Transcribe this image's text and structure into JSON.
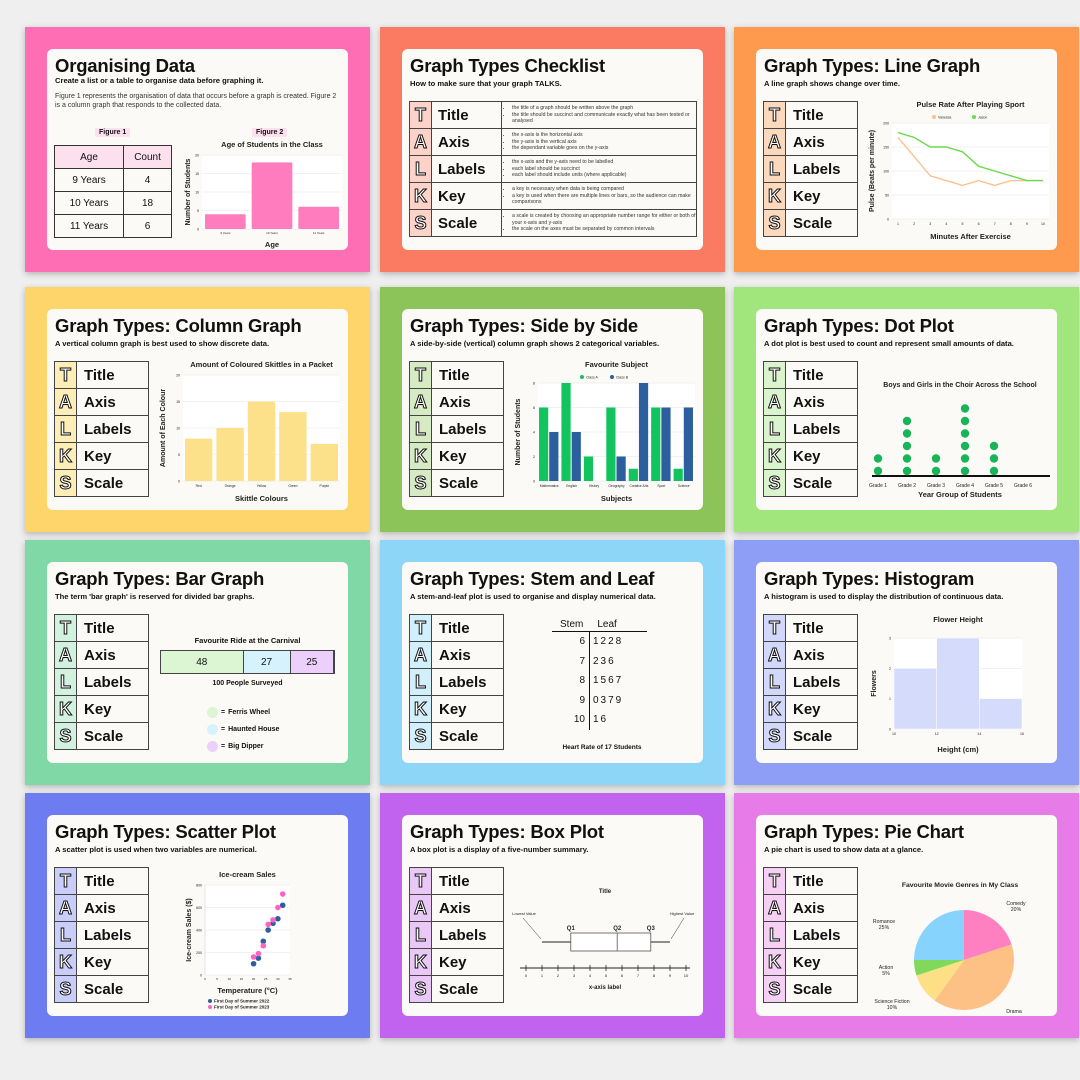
{
  "talks": [
    {
      "letter": "T",
      "word": "Title",
      "desc": [
        "the title of a graph should be written above the graph",
        "the title should be succinct and communicate exactly what has been tested or analysed"
      ]
    },
    {
      "letter": "A",
      "word": "Axis",
      "desc": [
        "the x-axis is the horizontal axis",
        "the y-axis is the vertical axis",
        "the dependant variable goes on the y-axis"
      ]
    },
    {
      "letter": "L",
      "word": "Labels",
      "desc": [
        "the x-axis and the y-axis need to be labelled",
        "each label should be succinct",
        "each label should include units (where applicable)"
      ]
    },
    {
      "letter": "K",
      "word": "Key",
      "desc": [
        "a key is necessary when data is being compared",
        "a key is used when there are multiple lines or bars, so the audience can make comparisons"
      ]
    },
    {
      "letter": "S",
      "word": "Scale",
      "desc": [
        "a scale is created by choosing an appropriate number range for either or both of your x-axis and y-axis",
        "the scale on the axes must be separated by common intervals"
      ]
    }
  ],
  "slides": [
    {
      "id": "organising-data",
      "title": "Organising Data",
      "subtitle": "Create a list or a table to organise data before graphing it.",
      "paragraph": "Figure 1 represents the organisation of data that occurs before a graph is created. Figure 2 is a column graph that responds to the collected data.",
      "figure1": "Figure 1",
      "figure2": "Figure 2",
      "table": {
        "headers": [
          "Age",
          "Count"
        ],
        "rows": [
          [
            "9 Years",
            "4"
          ],
          [
            "10 Years",
            "18"
          ],
          [
            "11 Years",
            "6"
          ]
        ]
      },
      "border": "#fd6eb4",
      "accent": "#fde0ee"
    },
    {
      "id": "checklist",
      "title": "Graph Types Checklist",
      "subtitle": "How to make sure that your graph TALKS.",
      "border": "#fb7b62",
      "accent": "#fcd2c9"
    },
    {
      "id": "line-graph",
      "title": "Graph Types: Line Graph",
      "subtitle": "A line graph shows change over time.",
      "border": "#fd9a4e",
      "accent": "#fcd8bc"
    },
    {
      "id": "column-graph",
      "title": "Graph Types: Column Graph",
      "subtitle": "A vertical column graph is best used to show discrete data.",
      "border": "#fdd56a",
      "accent": "#fdeeb7"
    },
    {
      "id": "side-by-side",
      "title": "Graph Types: Side by Side",
      "subtitle": "A side-by-side (vertical) column graph shows 2 categorical variables.",
      "border": "#8cc45a",
      "accent": "#d6ebc4"
    },
    {
      "id": "dot-plot",
      "title": "Graph Types: Dot Plot",
      "subtitle": "A dot plot is best used to count and represent small amounts of data.",
      "border": "#a0e67c",
      "accent": "#daf4cd"
    },
    {
      "id": "bar-graph",
      "title": "Graph Types: Bar Graph",
      "subtitle": "The term 'bar graph' is reserved for divided bar graphs.",
      "border": "#80d8a7",
      "accent": "#d3f1df"
    },
    {
      "id": "stem-leaf",
      "title": "Graph Types: Stem and Leaf",
      "subtitle": "A stem-and-leaf plot is used to organise and display numerical data.",
      "border": "#8ed6f7",
      "accent": "#d2effc"
    },
    {
      "id": "histogram",
      "title": "Graph Types: Histogram",
      "subtitle": "A histogram is used to display the distribution of continuous data.",
      "border": "#8e9df5",
      "accent": "#d2d8fb"
    },
    {
      "id": "scatter-plot",
      "title": "Graph Types: Scatter Plot",
      "subtitle": "A scatter plot is used when two variables are numerical.",
      "border": "#6d7cf0",
      "accent": "#c9cdfa"
    },
    {
      "id": "box-plot",
      "title": "Graph Types: Box Plot",
      "subtitle": "A box plot is a display of a five-number summary.",
      "border": "#c163ee",
      "accent": "#e9c8f8"
    },
    {
      "id": "pie-chart",
      "title": "Graph Types: Pie Chart",
      "subtitle": "A pie chart is used to show data at a glance.",
      "border": "#e77be8",
      "accent": "#f6cff5"
    }
  ],
  "chart_data": [
    {
      "slide": "organising-data",
      "type": "bar",
      "title": "Age of Students in the Class",
      "xlabel": "Age",
      "ylabel": "Number of Students",
      "categories": [
        "9 Years",
        "10 Years",
        "11 Years"
      ],
      "values": [
        4,
        18,
        6
      ],
      "ylim": [
        0,
        20
      ],
      "yticks": [
        0,
        5,
        10,
        15,
        20
      ],
      "color": "#ff7cbf",
      "grid": true
    },
    {
      "slide": "line-graph",
      "type": "line",
      "title": "Pulse Rate After Playing Sport",
      "xlabel": "Minutes After Exercise",
      "ylabel": "Pulse (Beats per minute)",
      "x": [
        1,
        2,
        3,
        4,
        5,
        6,
        7,
        8,
        9,
        10
      ],
      "ylim": [
        0,
        200
      ],
      "yticks": [
        0,
        50,
        100,
        150,
        200
      ],
      "legend": "top",
      "grid": true,
      "series": [
        {
          "name": "Vanessa",
          "color": "#fdc08e",
          "values": [
            170,
            130,
            90,
            80,
            70,
            80,
            70,
            80,
            80,
            80
          ]
        },
        {
          "name": "Jason",
          "color": "#6fd94f",
          "values": [
            180,
            170,
            150,
            150,
            140,
            110,
            100,
            90,
            80,
            80
          ]
        }
      ]
    },
    {
      "slide": "column-graph",
      "type": "bar",
      "title": "Amount of Coloured Skittles in a Packet",
      "xlabel": "Skittle Colours",
      "ylabel": "Amount of Each Colour",
      "categories": [
        "Red",
        "Orange",
        "Yellow",
        "Green",
        "Purple"
      ],
      "values": [
        8,
        10,
        15,
        13,
        7
      ],
      "ylim": [
        0,
        20
      ],
      "yticks": [
        0,
        5,
        10,
        15,
        20
      ],
      "color": "#fde08a",
      "grid": true
    },
    {
      "slide": "side-by-side",
      "type": "bar",
      "title": "Favourite Subject",
      "xlabel": "Subjects",
      "ylabel": "Number of Students",
      "categories": [
        "Mathematics",
        "English",
        "History",
        "Geography",
        "Creative Arts",
        "Sport",
        "Science"
      ],
      "ylim": [
        0,
        8
      ],
      "yticks": [
        0,
        2,
        4,
        6,
        8
      ],
      "legend": "top",
      "grid": true,
      "series": [
        {
          "name": "Class A",
          "color": "#12c45e",
          "values": [
            6,
            8,
            2,
            6,
            1,
            6,
            1
          ]
        },
        {
          "name": "Class B",
          "color": "#2b5f9e",
          "values": [
            4,
            4,
            0,
            2,
            8,
            6,
            6
          ]
        }
      ]
    },
    {
      "slide": "dot-plot",
      "type": "scatter",
      "title": "Boys and Girls in the Choir Across the School",
      "xlabel": "Year Group of Students",
      "categories": [
        "Grade 1",
        "Grade 2",
        "Grade 3",
        "Grade 4",
        "Grade 5",
        "Grade 6"
      ],
      "values": [
        2,
        5,
        2,
        6,
        3,
        0
      ],
      "color": "#19b458"
    },
    {
      "slide": "bar-graph",
      "type": "bar",
      "title": "Favourite Ride at the Carnival",
      "caption": "100 People Surveyed",
      "series": [
        {
          "name": "Ferris Wheel",
          "value": 48,
          "color": "#dcf5d2"
        },
        {
          "name": "Haunted House",
          "value": 27,
          "color": "#d5f2fd"
        },
        {
          "name": "Big Dipper",
          "value": 25,
          "color": "#ecd0fb"
        }
      ],
      "legend_prefix": "= "
    },
    {
      "slide": "stem-leaf",
      "type": "table",
      "caption": "Heart Rate of 17 Students",
      "headers": [
        "Stem",
        "Leaf"
      ],
      "rows": [
        [
          "6",
          "1228"
        ],
        [
          "7",
          "236"
        ],
        [
          "8",
          "1567"
        ],
        [
          "9",
          "0379"
        ],
        [
          "10",
          "16"
        ]
      ]
    },
    {
      "slide": "histogram",
      "type": "bar",
      "title": "Flower Height",
      "xlabel": "Height (cm)",
      "ylabel": "Flowers",
      "bins": [
        [
          10,
          12
        ],
        [
          12,
          14
        ],
        [
          14,
          16
        ]
      ],
      "values": [
        2,
        3,
        1
      ],
      "xticks": [
        10,
        12,
        14,
        16
      ],
      "ylim": [
        0,
        3
      ],
      "yticks": [
        0,
        1,
        2,
        3
      ],
      "color": "#d5dcfb",
      "grid": true
    },
    {
      "slide": "scatter-plot",
      "type": "scatter",
      "title": "Ice-cream Sales",
      "xlabel": "Temperature (°C)",
      "ylabel": "Ice-cream Sales ($)",
      "xlim": [
        0,
        35
      ],
      "xticks": [
        0,
        5,
        10,
        15,
        20,
        25,
        30,
        35
      ],
      "ylim": [
        0,
        800
      ],
      "yticks": [
        0,
        200,
        400,
        600,
        800
      ],
      "legend": "bottom",
      "grid": true,
      "series": [
        {
          "name": "First Day of Summer 2022",
          "color": "#2b5f9e",
          "points": [
            [
              20,
              100
            ],
            [
              22,
              150
            ],
            [
              24,
              300
            ],
            [
              26,
              400
            ],
            [
              28,
              460
            ],
            [
              30,
              500
            ],
            [
              32,
              620
            ]
          ]
        },
        {
          "name": "First Day of Summer 2023",
          "color": "#ff63c4",
          "points": [
            [
              20,
              160
            ],
            [
              22,
              190
            ],
            [
              24,
              260
            ],
            [
              26,
              450
            ],
            [
              28,
              490
            ],
            [
              30,
              600
            ],
            [
              32,
              720
            ]
          ]
        }
      ]
    },
    {
      "slide": "box-plot",
      "type": "box",
      "title": "Title",
      "xlabel": "x-axis label",
      "xlim": [
        0,
        10
      ],
      "xticks": [
        0,
        1,
        2,
        3,
        4,
        5,
        6,
        7,
        8,
        9,
        10
      ],
      "min": 1,
      "q1": 2.8,
      "median": 5.7,
      "q3": 7.8,
      "max": 9,
      "labels": {
        "min": "Lowest Value",
        "max": "Highest Value",
        "q1": "Q1",
        "median": "Q2",
        "q3": "Q3"
      }
    },
    {
      "slide": "pie-chart",
      "type": "pie",
      "title": "Favourite Movie Genres in My Class",
      "slices": [
        {
          "label": "Comedy",
          "value": 20,
          "color": "#ff80c0"
        },
        {
          "label": "Drama",
          "value": 40,
          "color": "#fec185"
        },
        {
          "label": "Science Fiction",
          "value": 10,
          "color": "#fde085"
        },
        {
          "label": "Action",
          "value": 5,
          "color": "#80d95a"
        },
        {
          "label": "Romance",
          "value": 25,
          "color": "#86d3fd"
        }
      ]
    }
  ]
}
